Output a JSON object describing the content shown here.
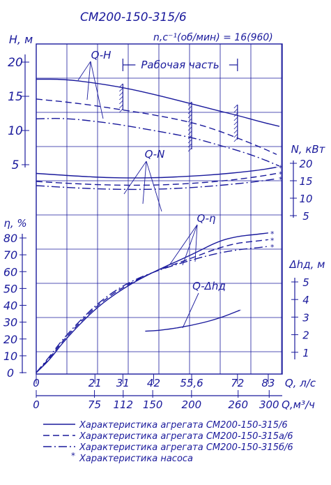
{
  "title": "СМ200-150-315/6",
  "speed_label": "n,c⁻¹(об/мин) = 16(960)",
  "work_zone_label": "Рабочая часть",
  "colors": {
    "ink": "#1a1a9c",
    "background": "#ffffff"
  },
  "chart_data": {
    "type": "line",
    "title": "СМ200-150-315/6",
    "subtitle": "n,c⁻¹(об/мин) = 16(960)",
    "xlabel": "Q, л/с",
    "xlabel2": "Q,м³/ч",
    "x_range": [
      0,
      88
    ],
    "x_ticks": [
      {
        "value": 0,
        "label": "0"
      },
      {
        "value": 21,
        "label": "21"
      },
      {
        "value": 31,
        "label": "31"
      },
      {
        "value": 42,
        "label": "42"
      },
      {
        "value": 55.6,
        "label": "55,6"
      },
      {
        "value": 72,
        "label": "72"
      },
      {
        "value": 83,
        "label": "83"
      }
    ],
    "x2_ticks": [
      {
        "value": 0,
        "label": "0"
      },
      {
        "value": 75,
        "label": "75"
      },
      {
        "value": 112,
        "label": "112"
      },
      {
        "value": 150,
        "label": "150"
      },
      {
        "value": 200,
        "label": "200"
      },
      {
        "value": 260,
        "label": "260"
      },
      {
        "value": 300,
        "label": "300"
      }
    ],
    "axes": {
      "H": {
        "label": "H, м",
        "ticks": [
          "5",
          "10",
          "15",
          "20"
        ],
        "range": [
          0,
          20
        ]
      },
      "N": {
        "label": "N, кВт",
        "ticks": [
          "5",
          "10",
          "15",
          "20"
        ],
        "range": [
          5,
          20
        ]
      },
      "eta": {
        "label": "η, %",
        "ticks": [
          "0",
          "10",
          "20",
          "30",
          "40",
          "50",
          "60",
          "70",
          "80"
        ],
        "range": [
          0,
          80
        ]
      },
      "npsh": {
        "label": "Δhд, м",
        "ticks": [
          "1",
          "2",
          "3",
          "4",
          "5"
        ],
        "range": [
          0,
          5
        ]
      }
    },
    "curve_labels": [
      "Q-H",
      "Q-N",
      "Q-η",
      "Q-Δhд"
    ],
    "work_zone": [
      31,
      72
    ],
    "series": [
      {
        "curve": "Q-H",
        "style": "solid",
        "x": [
          0,
          10,
          20,
          31,
          42,
          55.6,
          65,
          72,
          80,
          87
        ],
        "y": [
          17.5,
          17.5,
          17.0,
          16.3,
          15.3,
          13.9,
          12.9,
          12.2,
          11.3,
          10.6
        ]
      },
      {
        "curve": "Q-H",
        "style": "dashed",
        "x": [
          0,
          10,
          20,
          31,
          42,
          55.6,
          65,
          72,
          80,
          86
        ],
        "y": [
          14.6,
          14.2,
          13.7,
          13.0,
          12.3,
          11.2,
          10.0,
          8.9,
          7.6,
          6.5
        ]
      },
      {
        "curve": "Q-H",
        "style": "dashdot",
        "x": [
          0,
          10,
          20,
          31,
          42,
          55.6,
          65,
          72,
          80,
          87
        ],
        "y": [
          11.7,
          11.8,
          11.4,
          10.8,
          10.0,
          9.0,
          7.9,
          7.1,
          6.0,
          4.8
        ]
      },
      {
        "curve": "Q-N",
        "style": "solid",
        "x": [
          0,
          15,
          25,
          35,
          45,
          55,
          65,
          75,
          82,
          86
        ],
        "y": [
          17.1,
          16.3,
          15.9,
          15.8,
          15.9,
          16.3,
          16.8,
          17.6,
          18.3,
          18.9
        ]
      },
      {
        "curve": "Q-N",
        "style": "dashed",
        "x": [
          0,
          15,
          25,
          35,
          45,
          55,
          65,
          75,
          82,
          86
        ],
        "y": [
          14.8,
          14.1,
          13.8,
          13.7,
          13.8,
          14.2,
          14.8,
          15.7,
          16.5,
          17.1
        ]
      },
      {
        "curve": "Q-N",
        "style": "dashdot",
        "x": [
          0,
          15,
          25,
          35,
          45,
          55,
          65,
          75,
          82,
          86
        ],
        "y": [
          13.6,
          12.9,
          12.6,
          12.5,
          12.6,
          13.0,
          13.6,
          14.4,
          15.1,
          15.6
        ]
      },
      {
        "curve": "Q-η",
        "style": "solid",
        "x": [
          0,
          5,
          10,
          21,
          31,
          42,
          55.6,
          65,
          72,
          78,
          83
        ],
        "y": [
          0,
          8,
          19,
          38,
          50,
          60,
          70,
          78,
          81,
          82,
          83
        ]
      },
      {
        "curve": "Q-η",
        "style": "dashed",
        "x": [
          0,
          5,
          10,
          21,
          31,
          42,
          55.6,
          65,
          72,
          78,
          83
        ],
        "y": [
          0,
          9,
          20,
          39,
          51,
          60,
          68,
          74,
          77,
          78,
          79
        ]
      },
      {
        "curve": "Q-η",
        "style": "dashdot",
        "x": [
          0,
          5,
          10,
          21,
          31,
          42,
          55.6,
          65,
          72,
          78,
          83
        ],
        "y": [
          0,
          10,
          21,
          40,
          52,
          60,
          67,
          71,
          73,
          74,
          75
        ]
      },
      {
        "curve": "Q-Δhд",
        "style": "solid",
        "x": [
          39,
          45,
          55,
          65,
          73
        ],
        "y": [
          2.2,
          2.25,
          2.5,
          2.9,
          3.4
        ]
      }
    ],
    "legend": [
      {
        "style": "solid",
        "text": "Характеристика агрегата СМ200-150-315/6"
      },
      {
        "style": "dashed",
        "text": "Характеристика агрегата СМ200-150-315а/6"
      },
      {
        "style": "dashdot",
        "text": "Характеристика агрегата СМ200-150-315б/6"
      },
      {
        "style": "asterisk",
        "text": "Характеристика насоса"
      }
    ]
  }
}
